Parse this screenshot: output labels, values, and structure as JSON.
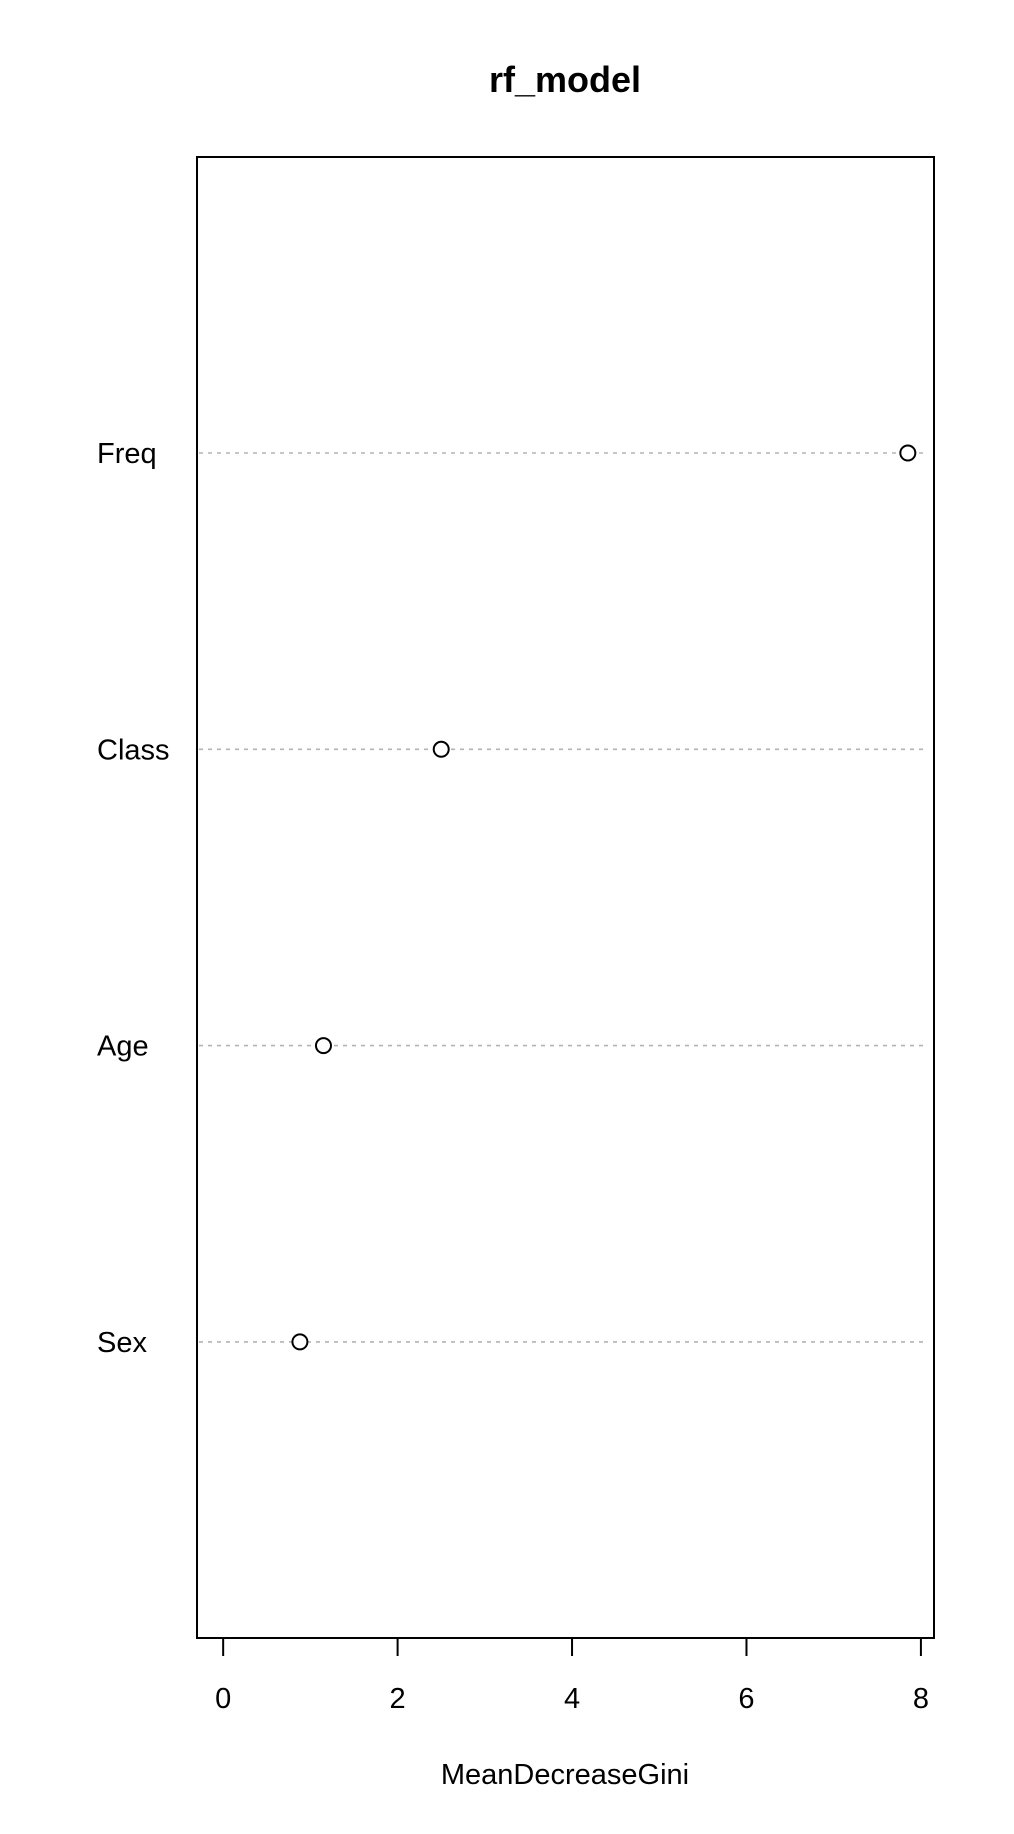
{
  "chart_data": {
    "type": "scatter",
    "title": "rf_model",
    "xlabel": "MeanDecreaseGini",
    "ylabel": "",
    "categories": [
      "Freq",
      "Class",
      "Age",
      "Sex"
    ],
    "values": [
      7.85,
      2.5,
      1.15,
      0.88
    ],
    "xlim": [
      -0.3,
      8.15
    ],
    "xticks": [
      "0",
      "2",
      "4",
      "6",
      "8"
    ],
    "grid": "dotted horizontal reference line per variable",
    "marker": "open circle",
    "colors": {
      "points": "#000000",
      "grid": "#b3b3b3",
      "background": "#ffffff"
    }
  }
}
